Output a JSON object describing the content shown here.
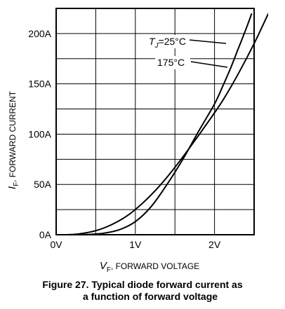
{
  "chart_data": {
    "type": "line",
    "title": "",
    "xlabel": {
      "symbol": "V",
      "subscript": "F",
      "text": ", FORWARD VOLTAGE"
    },
    "ylabel": {
      "symbol": "I",
      "subscript": "F",
      "text": ", FORWARD CURRENT"
    },
    "xlim": [
      0,
      2.5
    ],
    "ylim": [
      0,
      225
    ],
    "x_ticks": [
      {
        "value": 0,
        "label": "0V"
      },
      {
        "value": 1,
        "label": "1V"
      },
      {
        "value": 2,
        "label": "2V"
      }
    ],
    "y_ticks": [
      {
        "value": 0,
        "label": "0A"
      },
      {
        "value": 50,
        "label": "50A"
      },
      {
        "value": 100,
        "label": "100A"
      },
      {
        "value": 150,
        "label": "150A"
      },
      {
        "value": 200,
        "label": "200A"
      }
    ],
    "grid": true,
    "x_grid_step": 0.5,
    "y_grid_step": 25,
    "series": [
      {
        "label": {
          "symbol": "T",
          "subscript": "J",
          "text": "=25°C"
        },
        "color": "#000000",
        "points": [
          [
            0.2,
            0
          ],
          [
            0.4,
            0.3
          ],
          [
            0.6,
            1.5
          ],
          [
            0.8,
            5
          ],
          [
            1.0,
            13
          ],
          [
            1.2,
            28
          ],
          [
            1.4,
            50
          ],
          [
            1.6,
            75
          ],
          [
            1.8,
            103
          ],
          [
            2.0,
            130
          ],
          [
            2.1,
            147
          ],
          [
            2.2,
            165
          ],
          [
            2.3,
            185
          ],
          [
            2.4,
            205
          ],
          [
            2.47,
            220
          ]
        ]
      },
      {
        "label": {
          "symbol": "",
          "subscript": "",
          "text": "175°C"
        },
        "color": "#000000",
        "points": [
          [
            0.15,
            0
          ],
          [
            0.3,
            1
          ],
          [
            0.5,
            4
          ],
          [
            0.7,
            10
          ],
          [
            0.9,
            19
          ],
          [
            1.1,
            32
          ],
          [
            1.3,
            48
          ],
          [
            1.5,
            67
          ],
          [
            1.7,
            88
          ],
          [
            1.9,
            110
          ],
          [
            2.1,
            133
          ],
          [
            2.3,
            160
          ],
          [
            2.5,
            190
          ],
          [
            2.68,
            220
          ]
        ]
      }
    ],
    "caption": {
      "line1": "Figure 27. Typical diode forward current as",
      "line2": "a function of forward voltage"
    }
  }
}
